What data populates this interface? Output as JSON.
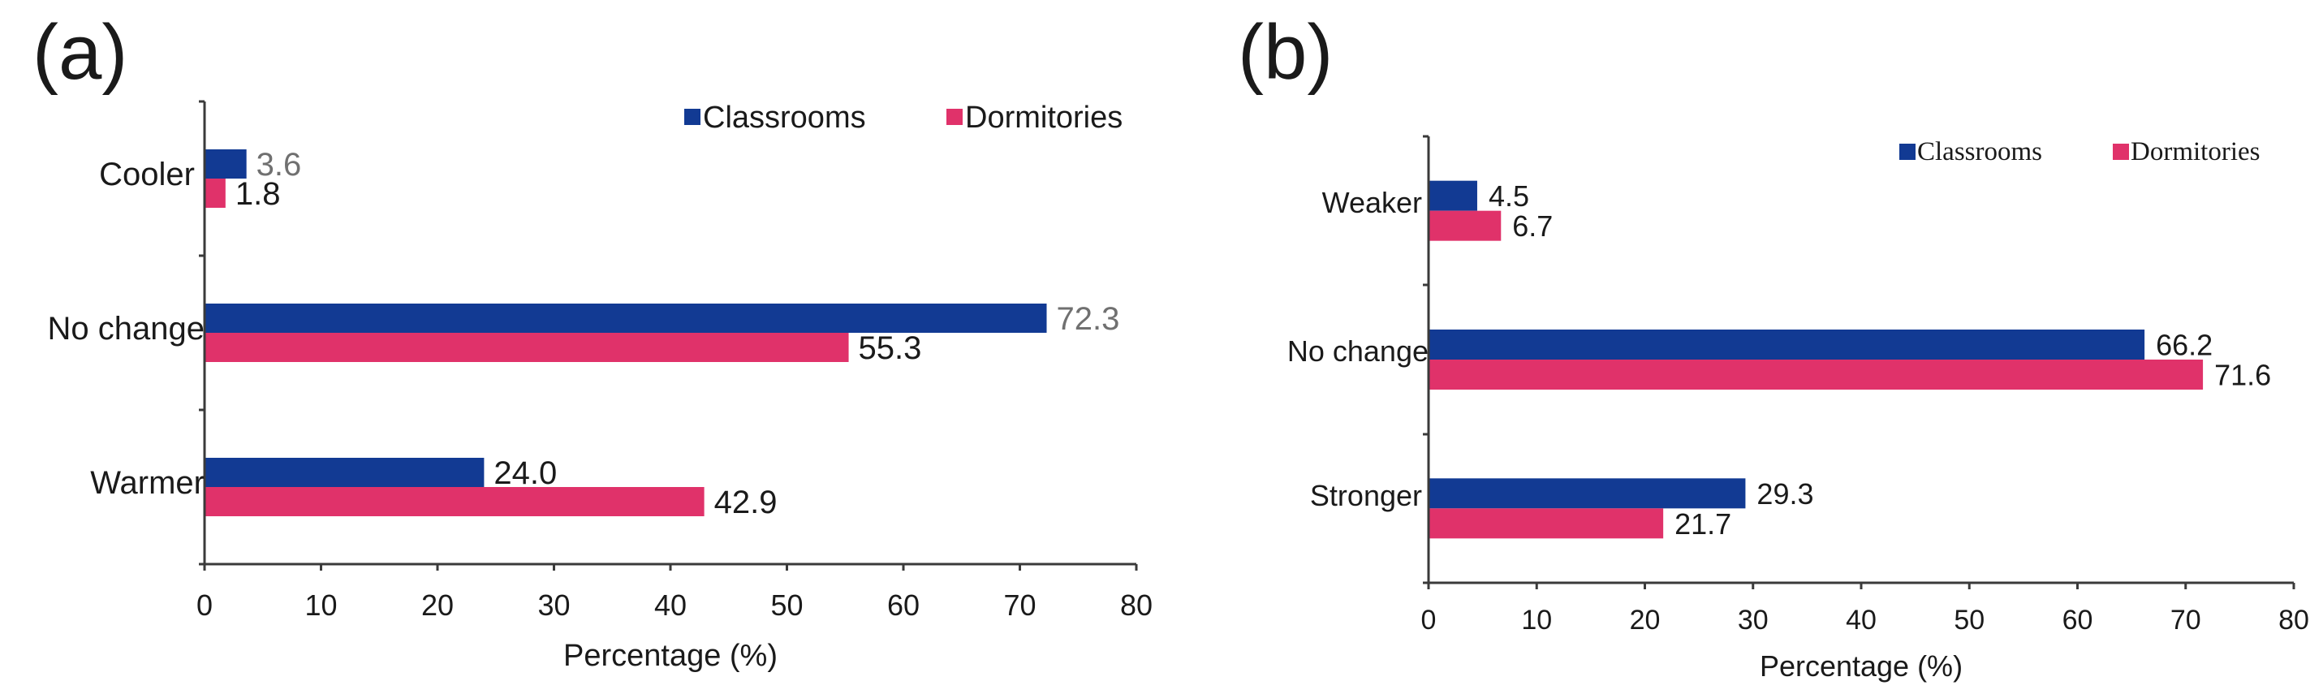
{
  "chart_data": [
    {
      "panel_label": "(a)",
      "type": "bar",
      "orientation": "horizontal",
      "categories": [
        "Cooler",
        "No change",
        "Warmer"
      ],
      "series": [
        {
          "name": "Classrooms",
          "color": "#123a93",
          "values": [
            3.6,
            72.3,
            24.0
          ],
          "labels": [
            "3.6",
            "72.3",
            "24.0"
          ]
        },
        {
          "name": "Dormitories",
          "color": "#e0326a",
          "values": [
            1.8,
            55.3,
            42.9
          ],
          "labels": [
            "1.8",
            "55.3",
            "42.9"
          ]
        }
      ],
      "xlabel": "Percentage (%)",
      "ylabel": "",
      "xlim": [
        0,
        80
      ],
      "xticks": [
        "0",
        "10",
        "20",
        "30",
        "40",
        "50",
        "60",
        "70",
        "80"
      ],
      "legend": "top-right"
    },
    {
      "panel_label": "(b)",
      "type": "bar",
      "orientation": "horizontal",
      "categories": [
        "Weaker",
        "No change",
        "Stronger"
      ],
      "series": [
        {
          "name": "Classrooms",
          "color": "#123a93",
          "values": [
            4.5,
            66.2,
            29.3
          ],
          "labels": [
            "4.5",
            "66.2",
            "29.3"
          ]
        },
        {
          "name": "Dormitories",
          "color": "#e0326a",
          "values": [
            6.7,
            71.6,
            21.7
          ],
          "labels": [
            "6.7",
            "71.6",
            "21.7"
          ]
        }
      ],
      "xlabel": "Percentage (%)",
      "ylabel": "",
      "xlim": [
        0,
        80
      ],
      "xticks": [
        "0",
        "10",
        "20",
        "30",
        "40",
        "50",
        "60",
        "70",
        "80"
      ],
      "legend": "top-right"
    }
  ]
}
